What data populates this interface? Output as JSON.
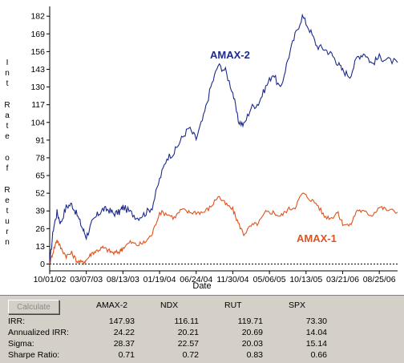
{
  "chart_data": {
    "type": "line",
    "xlabel": "Date",
    "ylabel": "Int Rate of Return",
    "ylabel_words": [
      "Int",
      "Rate",
      "of",
      "Return"
    ],
    "y_ticks": [
      182,
      169,
      156,
      143,
      130,
      117,
      104,
      91,
      78,
      65,
      52,
      39,
      26,
      13,
      0
    ],
    "ylim": [
      -5,
      188
    ],
    "x_ticks": [
      "10/01/02",
      "03/07/03",
      "08/13/03",
      "01/19/04",
      "06/24/04",
      "11/30/04",
      "05/06/05",
      "10/13/05",
      "03/21/06",
      "08/25/06"
    ],
    "reference_line": 0,
    "grid": false,
    "series": [
      {
        "name": "AMAX-2",
        "color": "#1c2a8c",
        "x": [
          0,
          0.1,
          0.2,
          0.3,
          0.45,
          0.6,
          0.75,
          0.9,
          1.0,
          1.15,
          1.3,
          1.45,
          1.6,
          1.75,
          1.9,
          2.0,
          2.2,
          2.4,
          2.6,
          2.8,
          3.0,
          3.2,
          3.4,
          3.6,
          3.8,
          4.0,
          4.2,
          4.4,
          4.6,
          4.8,
          5.0,
          5.15,
          5.3,
          5.5,
          5.7,
          5.9,
          6.1,
          6.3,
          6.5,
          6.7,
          6.9,
          7.1,
          7.3,
          7.5,
          7.7,
          7.85,
          8.0,
          8.2,
          8.4,
          8.6,
          8.8,
          9.0,
          9.2,
          9.5
        ],
        "values": [
          0,
          26,
          38,
          30,
          42,
          44,
          36,
          26,
          20,
          30,
          36,
          40,
          40,
          37,
          38,
          42,
          38,
          34,
          37,
          42,
          62,
          78,
          82,
          92,
          100,
          92,
          108,
          130,
          146,
          142,
          126,
          105,
          102,
          115,
          118,
          130,
          140,
          128,
          150,
          168,
          182,
          172,
          160,
          158,
          154,
          148,
          142,
          138,
          152,
          155,
          147,
          152,
          150,
          148
        ]
      },
      {
        "name": "AMAX-1",
        "color": "#e0521c",
        "x": [
          0,
          0.1,
          0.2,
          0.3,
          0.45,
          0.6,
          0.75,
          0.9,
          1.0,
          1.15,
          1.3,
          1.45,
          1.6,
          1.75,
          1.9,
          2.0,
          2.2,
          2.4,
          2.6,
          2.8,
          3.0,
          3.2,
          3.4,
          3.6,
          3.8,
          4.0,
          4.2,
          4.4,
          4.6,
          4.8,
          5.0,
          5.15,
          5.3,
          5.5,
          5.7,
          5.9,
          6.1,
          6.3,
          6.5,
          6.7,
          6.9,
          7.1,
          7.3,
          7.5,
          7.7,
          7.85,
          8.0,
          8.2,
          8.4,
          8.6,
          8.8,
          9.0,
          9.2,
          9.5
        ],
        "values": [
          0,
          10,
          18,
          12,
          6,
          8,
          2,
          1,
          3,
          8,
          10,
          12,
          10,
          8,
          9,
          12,
          16,
          14,
          16,
          22,
          38,
          37,
          34,
          40,
          38,
          38,
          38,
          42,
          50,
          44,
          40,
          30,
          22,
          28,
          30,
          38,
          38,
          35,
          40,
          42,
          52,
          48,
          44,
          35,
          34,
          38,
          30,
          28,
          40,
          38,
          36,
          42,
          40,
          38
        ]
      }
    ],
    "annotations": [
      {
        "text": "AMAX-2",
        "color": "#1c2a8c"
      },
      {
        "text": "AMAX-1",
        "color": "#e0521c"
      }
    ]
  },
  "stats": {
    "calculate_label": "Calculate",
    "columns": [
      "AMAX-2",
      "NDX",
      "RUT",
      "SPX"
    ],
    "rows": [
      {
        "label": "IRR:",
        "values": [
          "147.93",
          "116.11",
          "119.71",
          "73.30"
        ]
      },
      {
        "label": "Annualized IRR:",
        "values": [
          "24.22",
          "20.21",
          "20.69",
          "14.04"
        ]
      },
      {
        "label": "Sigma:",
        "values": [
          "28.37",
          "22.57",
          "20.03",
          "15.14"
        ]
      },
      {
        "label": "Sharpe Ratio:",
        "values": [
          "0.71",
          "0.72",
          "0.83",
          "0.66"
        ]
      }
    ]
  }
}
